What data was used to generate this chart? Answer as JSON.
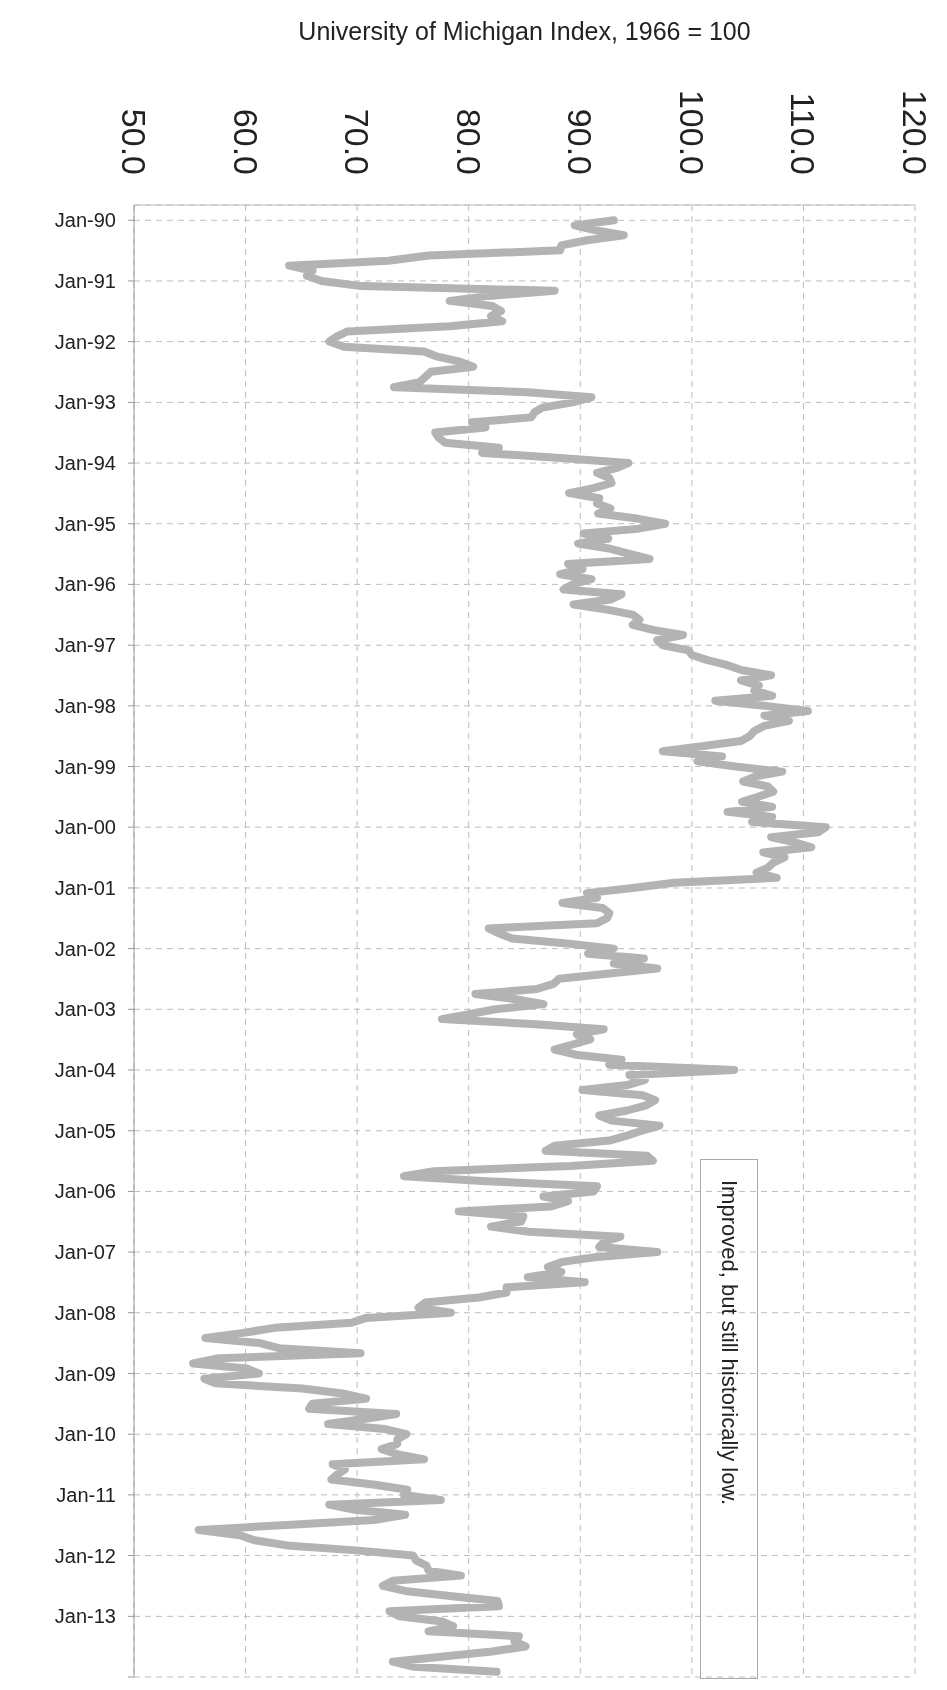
{
  "chart_data": {
    "type": "line",
    "orientation": "horizontal",
    "xlabel": "University of Michigan Index, 1966 = 100",
    "x": [
      "1990-01",
      "1990-02",
      "1990-03",
      "1990-04",
      "1990-05",
      "1990-06",
      "1990-07",
      "1990-08",
      "1990-09",
      "1990-10",
      "1990-11",
      "1990-12",
      "1991-01",
      "1991-02",
      "1991-03",
      "1991-04",
      "1991-05",
      "1991-06",
      "1991-07",
      "1991-08",
      "1991-09",
      "1991-10",
      "1991-11",
      "1991-12",
      "1992-01",
      "1992-02",
      "1992-03",
      "1992-04",
      "1992-05",
      "1992-06",
      "1992-07",
      "1992-08",
      "1992-09",
      "1992-10",
      "1992-11",
      "1992-12",
      "1993-01",
      "1993-02",
      "1993-03",
      "1993-04",
      "1993-05",
      "1993-06",
      "1993-07",
      "1993-08",
      "1993-09",
      "1993-10",
      "1993-11",
      "1993-12",
      "1994-01",
      "1994-02",
      "1994-03",
      "1994-04",
      "1994-05",
      "1994-06",
      "1994-07",
      "1994-08",
      "1994-09",
      "1994-10",
      "1994-11",
      "1994-12",
      "1995-01",
      "1995-02",
      "1995-03",
      "1995-04",
      "1995-05",
      "1995-06",
      "1995-07",
      "1995-08",
      "1995-09",
      "1995-10",
      "1995-11",
      "1995-12",
      "1996-01",
      "1996-02",
      "1996-03",
      "1996-04",
      "1996-05",
      "1996-06",
      "1996-07",
      "1996-08",
      "1996-09",
      "1996-10",
      "1996-11",
      "1996-12",
      "1997-01",
      "1997-02",
      "1997-03",
      "1997-04",
      "1997-05",
      "1997-06",
      "1997-07",
      "1997-08",
      "1997-09",
      "1997-10",
      "1997-11",
      "1997-12",
      "1998-01",
      "1998-02",
      "1998-03",
      "1998-04",
      "1998-05",
      "1998-06",
      "1998-07",
      "1998-08",
      "1998-09",
      "1998-10",
      "1998-11",
      "1998-12",
      "1999-01",
      "1999-02",
      "1999-03",
      "1999-04",
      "1999-05",
      "1999-06",
      "1999-07",
      "1999-08",
      "1999-09",
      "1999-10",
      "1999-11",
      "1999-12",
      "2000-01",
      "2000-02",
      "2000-03",
      "2000-04",
      "2000-05",
      "2000-06",
      "2000-07",
      "2000-08",
      "2000-09",
      "2000-10",
      "2000-11",
      "2000-12",
      "2001-01",
      "2001-02",
      "2001-03",
      "2001-04",
      "2001-05",
      "2001-06",
      "2001-07",
      "2001-08",
      "2001-09",
      "2001-10",
      "2001-11",
      "2001-12",
      "2002-01",
      "2002-02",
      "2002-03",
      "2002-04",
      "2002-05",
      "2002-06",
      "2002-07",
      "2002-08",
      "2002-09",
      "2002-10",
      "2002-11",
      "2002-12",
      "2003-01",
      "2003-02",
      "2003-03",
      "2003-04",
      "2003-05",
      "2003-06",
      "2003-07",
      "2003-08",
      "2003-09",
      "2003-10",
      "2003-11",
      "2003-12",
      "2004-01",
      "2004-02",
      "2004-03",
      "2004-04",
      "2004-05",
      "2004-06",
      "2004-07",
      "2004-08",
      "2004-09",
      "2004-10",
      "2004-11",
      "2004-12",
      "2005-01",
      "2005-02",
      "2005-03",
      "2005-04",
      "2005-05",
      "2005-06",
      "2005-07",
      "2005-08",
      "2005-09",
      "2005-10",
      "2005-11",
      "2005-12",
      "2006-01",
      "2006-02",
      "2006-03",
      "2006-04",
      "2006-05",
      "2006-06",
      "2006-07",
      "2006-08",
      "2006-09",
      "2006-10",
      "2006-11",
      "2006-12",
      "2007-01",
      "2007-02",
      "2007-03",
      "2007-04",
      "2007-05",
      "2007-06",
      "2007-07",
      "2007-08",
      "2007-09",
      "2007-10",
      "2007-11",
      "2007-12",
      "2008-01",
      "2008-02",
      "2008-03",
      "2008-04",
      "2008-05",
      "2008-06",
      "2008-07",
      "2008-08",
      "2008-09",
      "2008-10",
      "2008-11",
      "2008-12",
      "2009-01",
      "2009-02",
      "2009-03",
      "2009-04",
      "2009-05",
      "2009-06",
      "2009-07",
      "2009-08",
      "2009-09",
      "2009-10",
      "2009-11",
      "2009-12",
      "2010-01",
      "2010-02",
      "2010-03",
      "2010-04",
      "2010-05",
      "2010-06",
      "2010-07",
      "2010-08",
      "2010-09",
      "2010-10",
      "2010-11",
      "2010-12",
      "2011-01",
      "2011-02",
      "2011-03",
      "2011-04",
      "2011-05",
      "2011-06",
      "2011-07",
      "2011-08",
      "2011-09",
      "2011-10",
      "2011-11",
      "2011-12",
      "2012-01",
      "2012-02",
      "2012-03",
      "2012-04",
      "2012-05",
      "2012-06",
      "2012-07",
      "2012-08",
      "2012-09",
      "2012-10",
      "2012-11",
      "2012-12",
      "2013-01",
      "2013-02",
      "2013-03",
      "2013-04",
      "2013-05",
      "2013-06",
      "2013-07",
      "2013-08",
      "2013-09",
      "2013-10",
      "2013-11",
      "2013-12"
    ],
    "values": [
      93.0,
      89.5,
      91.3,
      93.9,
      90.6,
      88.3,
      88.2,
      76.4,
      72.8,
      63.9,
      66.0,
      65.5,
      66.8,
      70.4,
      87.7,
      81.8,
      78.3,
      82.1,
      82.9,
      82.0,
      83.0,
      78.3,
      69.1,
      68.2,
      67.5,
      68.8,
      76.0,
      77.2,
      79.2,
      80.4,
      76.6,
      76.1,
      75.6,
      73.3,
      85.3,
      91.0,
      89.3,
      86.6,
      85.9,
      85.6,
      80.3,
      81.5,
      77.0,
      77.3,
      77.9,
      82.7,
      81.2,
      88.2,
      94.3,
      93.2,
      91.5,
      92.6,
      92.8,
      91.2,
      89.0,
      91.7,
      91.5,
      92.7,
      91.6,
      95.1,
      97.6,
      95.1,
      90.3,
      92.5,
      89.8,
      92.7,
      94.4,
      96.2,
      88.9,
      90.2,
      88.2,
      91.0,
      89.3,
      88.5,
      93.7,
      92.7,
      89.4,
      92.4,
      94.7,
      95.3,
      94.7,
      96.5,
      99.2,
      96.9,
      97.4,
      99.7,
      100.0,
      101.4,
      103.2,
      104.5,
      107.1,
      104.4,
      106.0,
      105.6,
      107.2,
      102.1,
      106.6,
      110.4,
      106.5,
      108.7,
      106.5,
      105.6,
      105.2,
      104.4,
      100.9,
      97.4,
      102.7,
      100.5,
      103.9,
      108.1,
      105.7,
      104.6,
      106.8,
      107.3,
      106.0,
      104.5,
      107.2,
      103.2,
      107.2,
      105.4,
      112.0,
      111.3,
      107.1,
      109.2,
      110.7,
      106.4,
      108.3,
      107.3,
      106.8,
      105.8,
      107.6,
      98.4,
      94.7,
      90.6,
      91.5,
      88.4,
      92.0,
      92.6,
      92.4,
      91.5,
      81.8,
      82.7,
      83.9,
      88.8,
      93.0,
      90.7,
      95.7,
      93.0,
      96.9,
      92.4,
      88.1,
      87.6,
      86.1,
      80.6,
      84.2,
      86.7,
      82.4,
      79.9,
      77.6,
      86.0,
      92.1,
      89.7,
      90.9,
      89.3,
      87.7,
      89.6,
      93.7,
      92.6,
      103.8,
      94.4,
      95.8,
      94.2,
      90.2,
      95.6,
      96.7,
      95.9,
      94.2,
      91.7,
      92.8,
      97.1,
      95.5,
      94.1,
      92.6,
      87.7,
      86.9,
      96.0,
      96.5,
      89.1,
      76.9,
      74.2,
      81.6,
      91.5,
      91.2,
      86.7,
      88.9,
      87.4,
      79.1,
      84.9,
      84.7,
      82.0,
      85.4,
      93.6,
      92.1,
      91.7,
      96.9,
      91.3,
      88.4,
      87.1,
      88.3,
      85.3,
      90.4,
      83.4,
      83.4,
      80.9,
      76.1,
      75.5,
      78.4,
      70.8,
      69.5,
      62.6,
      59.8,
      56.4,
      61.2,
      63.0,
      70.3,
      57.6,
      55.3,
      60.1,
      61.2,
      56.3,
      57.3,
      65.1,
      68.7,
      70.8,
      66.0,
      65.7,
      73.5,
      70.6,
      67.4,
      72.5,
      74.4,
      73.6,
      73.6,
      72.2,
      73.6,
      76.0,
      67.8,
      68.9,
      68.2,
      67.7,
      71.6,
      74.5,
      74.2,
      77.5,
      67.5,
      69.8,
      74.3,
      71.5,
      63.7,
      55.8,
      59.5,
      60.8,
      63.7,
      69.9,
      75.0,
      75.3,
      76.2,
      76.4,
      79.3,
      73.2,
      72.3,
      74.3,
      78.3,
      82.6,
      82.7,
      72.9,
      73.8,
      77.6,
      78.6,
      76.4,
      84.5,
      84.1,
      85.1,
      82.1,
      77.5,
      73.2,
      75.1,
      82.5
    ],
    "color": "#b3b3b3",
    "marker": "none",
    "grid": true,
    "xlim": [
      50,
      120
    ],
    "xticks": [
      {
        "value": 50,
        "label": "50.0"
      },
      {
        "value": 60,
        "label": "60.0"
      },
      {
        "value": 70,
        "label": "70.0"
      },
      {
        "value": 80,
        "label": "80.0"
      },
      {
        "value": 90,
        "label": "90.0"
      },
      {
        "value": 100,
        "label": "100.0"
      },
      {
        "value": 110,
        "label": "110.0"
      },
      {
        "value": 120,
        "label": "120.0"
      }
    ],
    "ylim": [
      "2014-01",
      "1989-10"
    ],
    "yticks": [
      {
        "value": "1990-01",
        "label": "Jan-90"
      },
      {
        "value": "1991-01",
        "label": "Jan-91"
      },
      {
        "value": "1992-01",
        "label": "Jan-92"
      },
      {
        "value": "1993-01",
        "label": "Jan-93"
      },
      {
        "value": "1994-01",
        "label": "Jan-94"
      },
      {
        "value": "1995-01",
        "label": "Jan-95"
      },
      {
        "value": "1996-01",
        "label": "Jan-96"
      },
      {
        "value": "1997-01",
        "label": "Jan-97"
      },
      {
        "value": "1998-01",
        "label": "Jan-98"
      },
      {
        "value": "1999-01",
        "label": "Jan-99"
      },
      {
        "value": "2000-01",
        "label": "Jan-00"
      },
      {
        "value": "2001-01",
        "label": "Jan-01"
      },
      {
        "value": "2002-01",
        "label": "Jan-02"
      },
      {
        "value": "2003-01",
        "label": "Jan-03"
      },
      {
        "value": "2004-01",
        "label": "Jan-04"
      },
      {
        "value": "2005-01",
        "label": "Jan-05"
      },
      {
        "value": "2006-01",
        "label": "Jan-06"
      },
      {
        "value": "2007-01",
        "label": "Jan-07"
      },
      {
        "value": "2008-01",
        "label": "Jan-08"
      },
      {
        "value": "2009-01",
        "label": "Jan-09"
      },
      {
        "value": "2010-01",
        "label": "Jan-10"
      },
      {
        "value": "2011-01",
        "label": "Jan-11"
      },
      {
        "value": "2012-01",
        "label": "Jan-12"
      },
      {
        "value": "2013-01",
        "label": "Jan-13"
      },
      {
        "value": "2014-01",
        "label": null
      }
    ],
    "annotations": [
      "Improved, but still historically low."
    ]
  }
}
